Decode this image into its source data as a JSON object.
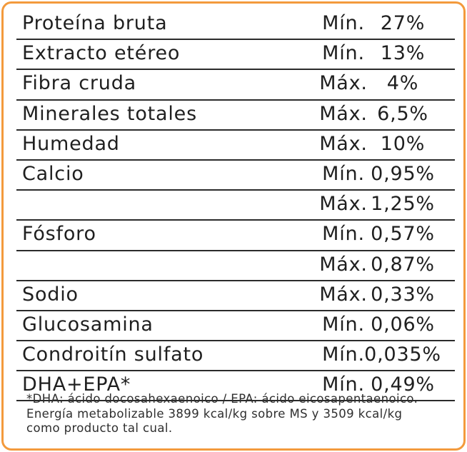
{
  "colors": {
    "border": "#f39a3c",
    "text": "#1f1f1f",
    "rule": "#2b2b2b"
  },
  "rows": [
    {
      "nutrient": "Proteína bruta",
      "limit": "Mín.",
      "value": "27%"
    },
    {
      "nutrient": "Extracto etéreo",
      "limit": "Mín.",
      "value": "13%"
    },
    {
      "nutrient": "Fibra cruda",
      "limit": "Máx.",
      "value": "4%"
    },
    {
      "nutrient": "Minerales totales",
      "limit": "Máx.",
      "value": "6,5%"
    },
    {
      "nutrient": "Humedad",
      "limit": "Máx.",
      "value": "10%"
    },
    {
      "nutrient": "Calcio",
      "limit": "Mín.",
      "value": "0,95%"
    },
    {
      "nutrient": "",
      "limit": "Máx.",
      "value": "1,25%"
    },
    {
      "nutrient": "Fósforo",
      "limit": "Mín.",
      "value": "0,57%"
    },
    {
      "nutrient": "",
      "limit": "Máx.",
      "value": "0,87%"
    },
    {
      "nutrient": "Sodio",
      "limit": "Máx.",
      "value": "0,33%"
    },
    {
      "nutrient": "Glucosamina",
      "limit": "Mín.",
      "value": "0,06%"
    },
    {
      "nutrient": "Condroitín sulfato",
      "limit": "Mín.",
      "value": "0,035%"
    },
    {
      "nutrient": "DHA+EPA*",
      "limit": "Mín.",
      "value": "0,49%"
    }
  ],
  "footnote": {
    "line1": "*DHA: ácido docosahexaenoico / EPA: ácido eicosapentaenoico.",
    "line2": "Energía metabolizable 3899 kcal/kg sobre MS y 3509 kcal/kg",
    "line3": "como producto tal cual."
  }
}
